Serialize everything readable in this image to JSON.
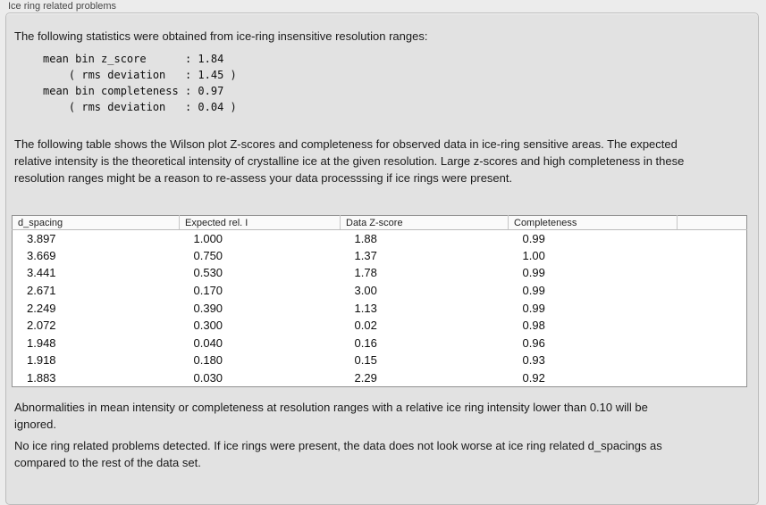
{
  "panel": {
    "title": "Ice ring related problems"
  },
  "intro": "The following statistics were obtained from ice-ring insensitive resolution ranges:",
  "stats_block": {
    "lines": [
      "mean bin z_score      : 1.84",
      "    ( rms deviation   : 1.45 )",
      "mean bin completeness : 0.97",
      "    ( rms deviation   : 0.04 )"
    ]
  },
  "table_description": "The following table shows the Wilson plot Z-scores and completeness for observed data in ice-ring sensitive areas. The expected relative intensity is the theoretical intensity of crystalline ice at the given resolution. Large z-scores and high completeness in these resolution ranges might be a reason to re-assess your data processsing if ice rings were present.",
  "table": {
    "columns": [
      "d_spacing",
      "Expected rel. I",
      "Data Z-score",
      "Completeness",
      ""
    ],
    "rows": [
      [
        "3.897",
        "1.000",
        "1.88",
        "0.99"
      ],
      [
        "3.669",
        "0.750",
        "1.37",
        "1.00"
      ],
      [
        "3.441",
        "0.530",
        "1.78",
        "0.99"
      ],
      [
        "2.671",
        "0.170",
        "3.00",
        "0.99"
      ],
      [
        "2.249",
        "0.390",
        "1.13",
        "0.99"
      ],
      [
        "2.072",
        "0.300",
        "0.02",
        "0.98"
      ],
      [
        "1.948",
        "0.040",
        "0.16",
        "0.96"
      ],
      [
        "1.918",
        "0.180",
        "0.15",
        "0.93"
      ],
      [
        "1.883",
        "0.030",
        "2.29",
        "0.92"
      ]
    ]
  },
  "notes": {
    "ignore_note": "Abnormalities in mean intensity or completeness at resolution ranges with a relative ice ring intensity lower than 0.10 will be ignored.",
    "conclusion": "No ice ring related problems detected. If ice rings were present, the data does not look worse at ice ring related d_spacings as compared to the rest of the data set."
  }
}
